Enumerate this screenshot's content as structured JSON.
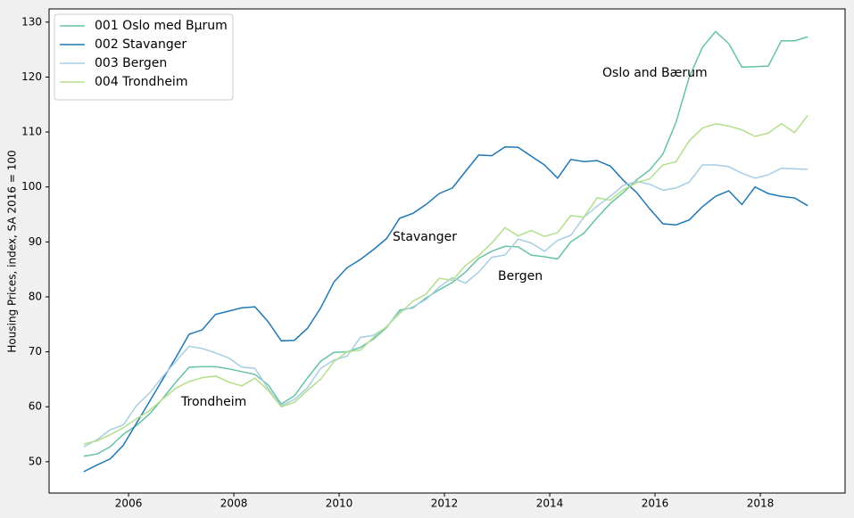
{
  "chart_data": {
    "type": "line",
    "ylabel": "Housing Prices, index, SA 2016 = 100",
    "x": [
      2005.15,
      2005.4,
      2005.65,
      2005.9,
      2006.15,
      2006.4,
      2006.65,
      2006.9,
      2007.15,
      2007.4,
      2007.65,
      2007.9,
      2008.15,
      2008.4,
      2008.65,
      2008.9,
      2009.15,
      2009.4,
      2009.65,
      2009.9,
      2010.15,
      2010.4,
      2010.65,
      2010.9,
      2011.15,
      2011.4,
      2011.65,
      2011.9,
      2012.15,
      2012.4,
      2012.65,
      2012.9,
      2013.15,
      2013.4,
      2013.65,
      2013.9,
      2014.15,
      2014.4,
      2014.65,
      2014.9,
      2015.15,
      2015.4,
      2015.65,
      2015.9,
      2016.15,
      2016.4,
      2016.65,
      2016.9,
      2017.15,
      2017.4,
      2017.65,
      2017.9,
      2018.15,
      2018.4,
      2018.65,
      2018.9
    ],
    "series": [
      {
        "name": "001 Oslo med Bµrum",
        "color": "#66c2a5",
        "values": [
          51,
          51.4,
          52.7,
          55,
          56.6,
          58.7,
          61.5,
          64.5,
          67.2,
          67.3,
          67.3,
          66.9,
          66.4,
          65.9,
          64,
          60.5,
          62,
          65.3,
          68.3,
          69.9,
          70,
          70.8,
          72.3,
          74.4,
          77.6,
          78,
          79.8,
          81.3,
          82.6,
          84.5,
          87,
          88.3,
          89.2,
          89.1,
          87.6,
          87.3,
          86.9,
          90,
          91.6,
          94.4,
          97,
          99,
          101.3,
          103.1,
          106,
          111.8,
          120,
          125.4,
          128.3,
          126.1,
          121.8,
          121.9,
          122,
          126.6,
          126.6,
          127.3
        ]
      },
      {
        "name": "002 Stavanger",
        "color": "#1f78b4",
        "values": [
          48.2,
          49.4,
          50.5,
          53,
          57,
          61,
          65,
          69,
          73.2,
          74,
          76.8,
          77.4,
          78,
          78.2,
          75.5,
          72,
          72.1,
          74.3,
          78,
          82.7,
          85.3,
          86.8,
          88.6,
          90.6,
          94.3,
          95.2,
          96.8,
          98.8,
          99.8,
          102.8,
          105.8,
          105.7,
          107.3,
          107.2,
          105.6,
          104,
          101.6,
          105,
          104.6,
          104.8,
          103.8,
          101.2,
          99,
          96,
          93.3,
          93.1,
          94,
          96.4,
          98.3,
          99.3,
          96.8,
          100,
          98.8,
          98.3,
          98,
          96.6
        ]
      },
      {
        "name": "003 Bergen",
        "color": "#a6cee3",
        "values": [
          52.7,
          54,
          55.8,
          56.7,
          60.2,
          62.5,
          65.5,
          68.3,
          71,
          70.6,
          69.8,
          68.9,
          67.2,
          67,
          63.3,
          60.2,
          61.3,
          63.5,
          67,
          68.5,
          69.2,
          72.6,
          73,
          74.5,
          77.3,
          78.2,
          79.5,
          81.8,
          83.5,
          82.5,
          84.5,
          87.2,
          87.6,
          90.5,
          89.8,
          88.3,
          90.3,
          91.2,
          94.5,
          96.5,
          98.3,
          100.3,
          101,
          100.5,
          99.4,
          99.8,
          100.9,
          104,
          104,
          103.7,
          102.5,
          101.6,
          102.2,
          103.4,
          103.3,
          103.2
        ]
      },
      {
        "name": "004 Trondheim",
        "color": "#b2df8a",
        "values": [
          53.2,
          53.8,
          54.9,
          56.2,
          57.8,
          59.3,
          61.4,
          63.4,
          64.6,
          65.3,
          65.6,
          64.5,
          63.8,
          65.2,
          63,
          60,
          60.8,
          63,
          65,
          68.2,
          70,
          70.3,
          72.6,
          74.6,
          77,
          79.2,
          80.5,
          83.4,
          83,
          85.7,
          87.5,
          89.8,
          92.6,
          91.1,
          92.1,
          91,
          91.7,
          94.8,
          94.5,
          98,
          97.6,
          99.5,
          100.8,
          101.5,
          104,
          104.6,
          108.4,
          110.7,
          111.5,
          111.1,
          110.4,
          109.2,
          109.8,
          111.5,
          109.9,
          113
        ]
      }
    ],
    "annotations": [
      "Oslo and Bærum",
      "Stavanger",
      "Bergen",
      "Trondheim"
    ],
    "xlim": [
      2004.49,
      2019.61
    ],
    "xticks": [
      2006,
      2008,
      2010,
      2012,
      2014,
      2016,
      2018
    ],
    "ylim": [
      44.3,
      132.4
    ],
    "yticks": [
      50,
      60,
      70,
      80,
      90,
      100,
      110,
      120,
      130
    ],
    "grid": false,
    "legend": "upper left"
  }
}
